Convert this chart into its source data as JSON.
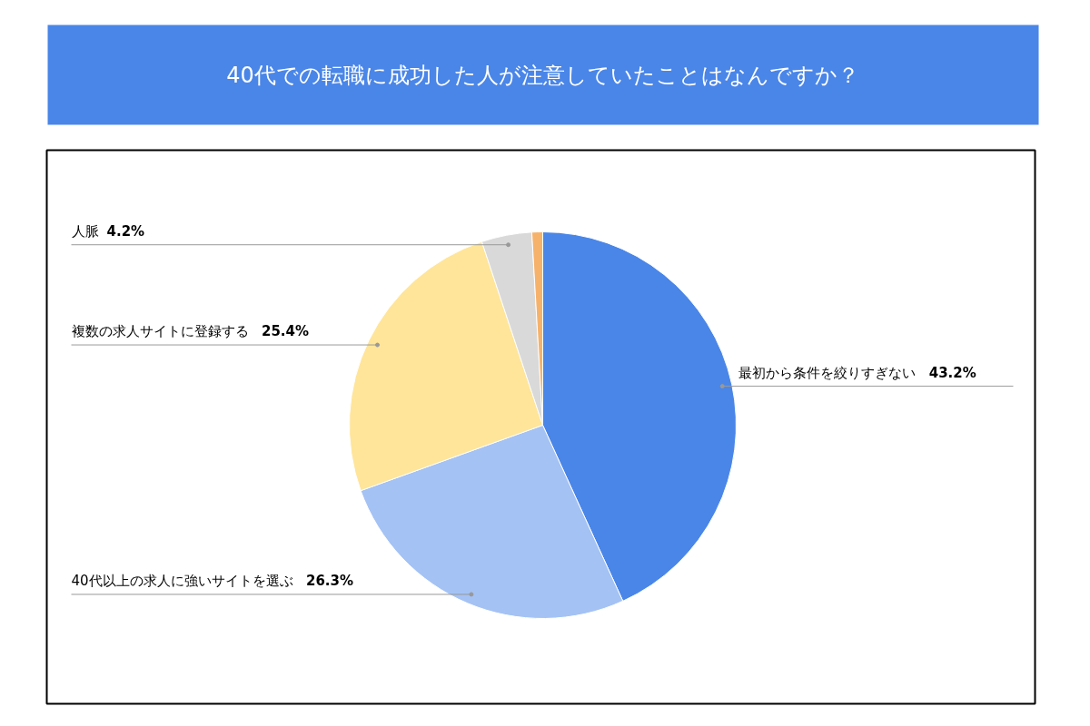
{
  "chart_data": {
    "type": "pie",
    "title": "40代での転職に成功した人が注意していたことはなんですか？",
    "categories": [
      "最初から条件を絞りすぎない",
      "40代以上の求人に強いサイトを選ぶ",
      "複数の求人サイトに登録する",
      "人脈",
      null
    ],
    "values": [
      43.2,
      26.3,
      25.4,
      4.2,
      0.9
    ],
    "colors": [
      "#4a86e8",
      "#a4c2f4",
      "#ffe599",
      "#d9d9d9",
      "#f6b26b"
    ],
    "value_labels": [
      "43.2%",
      "26.3%",
      "25.4%",
      "4.2%",
      null
    ]
  }
}
